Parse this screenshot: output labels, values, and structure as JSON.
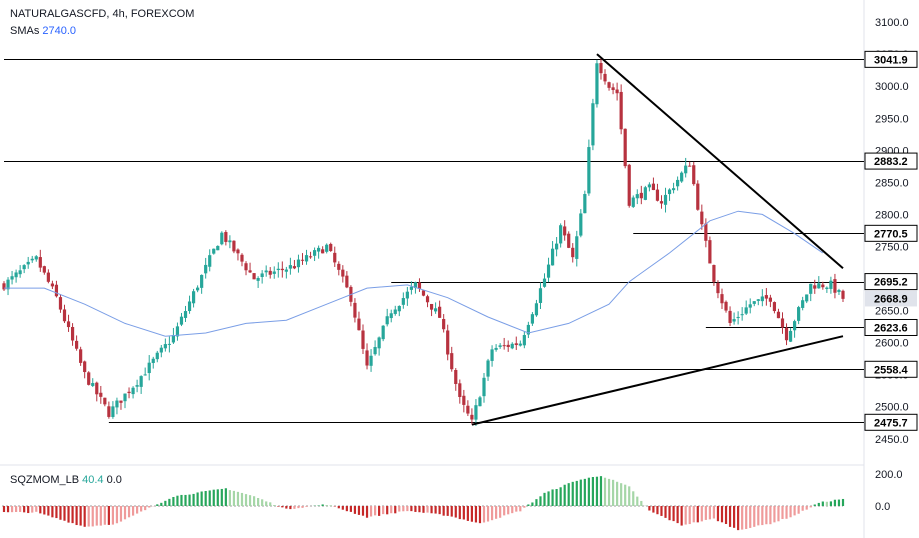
{
  "header": {
    "symbol": "NATURALGASCFD",
    "interval": "4h",
    "exchange": "FOREXCOM",
    "title": "NATURALGASCFD, 4h, FOREXCOM",
    "sma_label": "SMAs",
    "sma_value": "2740.0"
  },
  "indicator": {
    "name": "SQZMOM_LB",
    "value1": "40.4",
    "value2": "0.0"
  },
  "colors": {
    "up_candle": "#26a69a",
    "down_candle": "#b7323f",
    "sma": "#7a9ee6",
    "mom_pos_strong": "#26a65b",
    "mom_pos_weak": "#a5d6a7",
    "mom_neg_strong": "#c62828",
    "mom_neg_weak": "#ef9a9a"
  },
  "chart_data": {
    "type": "candlestick",
    "price_axis": {
      "ticks": [
        "3100.0",
        "3050.0",
        "3000.0",
        "2950.0",
        "2900.0",
        "2850.0",
        "2800.0",
        "2750.0",
        "2700.0",
        "2650.0",
        "2600.0",
        "2550.0",
        "2500.0",
        "2450.0"
      ],
      "range": [
        2420,
        3122
      ]
    },
    "momentum_axis": {
      "ticks": [
        "200.0",
        "0.0"
      ]
    },
    "price_labels": [
      {
        "text": "3041.9",
        "value": 3041.9,
        "style": "level"
      },
      {
        "text": "2883.2",
        "value": 2883.2,
        "style": "level"
      },
      {
        "text": "2770.5",
        "value": 2770.5,
        "style": "level"
      },
      {
        "text": "2695.2",
        "value": 2695.2,
        "style": "level"
      },
      {
        "text": "2668.9",
        "value": 2668.9,
        "style": "current"
      },
      {
        "text": "2623.6",
        "value": 2623.6,
        "style": "level"
      },
      {
        "text": "2558.4",
        "value": 2558.4,
        "style": "level"
      },
      {
        "text": "2475.7",
        "value": 2475.7,
        "style": "level"
      }
    ],
    "horizontal_levels": [
      {
        "value": 3041.9,
        "from_bar": 0,
        "to_bar": 209
      },
      {
        "value": 2883.2,
        "from_bar": 0,
        "to_bar": 209
      },
      {
        "value": 2770.5,
        "from_bar": 156,
        "to_bar": 209
      },
      {
        "value": 2695.2,
        "from_bar": 96,
        "to_bar": 209
      },
      {
        "value": 2623.6,
        "from_bar": 174,
        "to_bar": 209
      },
      {
        "value": 2558.4,
        "from_bar": 128,
        "to_bar": 209
      },
      {
        "value": 2475.7,
        "from_bar": 26,
        "to_bar": 209
      }
    ],
    "trendlines": [
      {
        "name": "descending",
        "from": {
          "bar": 147,
          "price": 3050
        },
        "to": {
          "bar": 208,
          "price": 2716
        }
      },
      {
        "name": "ascending",
        "from": {
          "bar": 116,
          "price": 2472
        },
        "to": {
          "bar": 208,
          "price": 2610
        }
      }
    ],
    "key_points": [
      {
        "bar": 0,
        "price": 2690
      },
      {
        "bar": 8,
        "price": 2730
      },
      {
        "bar": 13,
        "price": 2670
      },
      {
        "bar": 20,
        "price": 2550
      },
      {
        "bar": 26,
        "price": 2490
      },
      {
        "bar": 33,
        "price": 2540
      },
      {
        "bar": 42,
        "price": 2610
      },
      {
        "bar": 54,
        "price": 2770
      },
      {
        "bar": 62,
        "price": 2700
      },
      {
        "bar": 72,
        "price": 2720
      },
      {
        "bar": 80,
        "price": 2750
      },
      {
        "bar": 86,
        "price": 2670
      },
      {
        "bar": 90,
        "price": 2560
      },
      {
        "bar": 96,
        "price": 2650
      },
      {
        "bar": 102,
        "price": 2690
      },
      {
        "bar": 108,
        "price": 2640
      },
      {
        "bar": 113,
        "price": 2510
      },
      {
        "bar": 116,
        "price": 2475
      },
      {
        "bar": 121,
        "price": 2590
      },
      {
        "bar": 128,
        "price": 2600
      },
      {
        "bar": 134,
        "price": 2700
      },
      {
        "bar": 138,
        "price": 2780
      },
      {
        "bar": 141,
        "price": 2730
      },
      {
        "bar": 144,
        "price": 2830
      },
      {
        "bar": 147,
        "price": 3040
      },
      {
        "bar": 150,
        "price": 3000
      },
      {
        "bar": 152,
        "price": 2990
      },
      {
        "bar": 155,
        "price": 2820
      },
      {
        "bar": 160,
        "price": 2840
      },
      {
        "bar": 163,
        "price": 2820
      },
      {
        "bar": 170,
        "price": 2880
      },
      {
        "bar": 173,
        "price": 2780
      },
      {
        "bar": 176,
        "price": 2700
      },
      {
        "bar": 180,
        "price": 2630
      },
      {
        "bar": 185,
        "price": 2660
      },
      {
        "bar": 190,
        "price": 2670
      },
      {
        "bar": 194,
        "price": 2610
      },
      {
        "bar": 200,
        "price": 2690
      },
      {
        "bar": 205,
        "price": 2690
      },
      {
        "bar": 208,
        "price": 2669
      }
    ],
    "sma_points": [
      {
        "bar": 0,
        "price": 2685
      },
      {
        "bar": 10,
        "price": 2685
      },
      {
        "bar": 20,
        "price": 2660
      },
      {
        "bar": 30,
        "price": 2630
      },
      {
        "bar": 40,
        "price": 2610
      },
      {
        "bar": 50,
        "price": 2615
      },
      {
        "bar": 60,
        "price": 2630
      },
      {
        "bar": 70,
        "price": 2635
      },
      {
        "bar": 80,
        "price": 2660
      },
      {
        "bar": 90,
        "price": 2685
      },
      {
        "bar": 100,
        "price": 2690
      },
      {
        "bar": 110,
        "price": 2670
      },
      {
        "bar": 120,
        "price": 2640
      },
      {
        "bar": 130,
        "price": 2615
      },
      {
        "bar": 140,
        "price": 2630
      },
      {
        "bar": 150,
        "price": 2660
      },
      {
        "bar": 155,
        "price": 2695
      },
      {
        "bar": 165,
        "price": 2740
      },
      {
        "bar": 175,
        "price": 2790
      },
      {
        "bar": 182,
        "price": 2805
      },
      {
        "bar": 188,
        "price": 2800
      },
      {
        "bar": 196,
        "price": 2770
      },
      {
        "bar": 203,
        "price": 2740
      }
    ],
    "momentum_key_points": [
      {
        "bar": 0,
        "value": -40
      },
      {
        "bar": 8,
        "value": -40
      },
      {
        "bar": 20,
        "value": -130
      },
      {
        "bar": 28,
        "value": -110
      },
      {
        "bar": 42,
        "value": 60
      },
      {
        "bar": 55,
        "value": 110
      },
      {
        "bar": 62,
        "value": 60
      },
      {
        "bar": 70,
        "value": -20
      },
      {
        "bar": 80,
        "value": 10
      },
      {
        "bar": 90,
        "value": -70
      },
      {
        "bar": 100,
        "value": -30
      },
      {
        "bar": 110,
        "value": -60
      },
      {
        "bar": 118,
        "value": -110
      },
      {
        "bar": 128,
        "value": -30
      },
      {
        "bar": 134,
        "value": 80
      },
      {
        "bar": 142,
        "value": 160
      },
      {
        "bar": 148,
        "value": 190
      },
      {
        "bar": 155,
        "value": 120
      },
      {
        "bar": 160,
        "value": -30
      },
      {
        "bar": 168,
        "value": -120
      },
      {
        "bar": 176,
        "value": -80
      },
      {
        "bar": 182,
        "value": -150
      },
      {
        "bar": 190,
        "value": -110
      },
      {
        "bar": 196,
        "value": -60
      },
      {
        "bar": 202,
        "value": 20
      },
      {
        "bar": 208,
        "value": 45
      }
    ],
    "bar_count": 209
  }
}
